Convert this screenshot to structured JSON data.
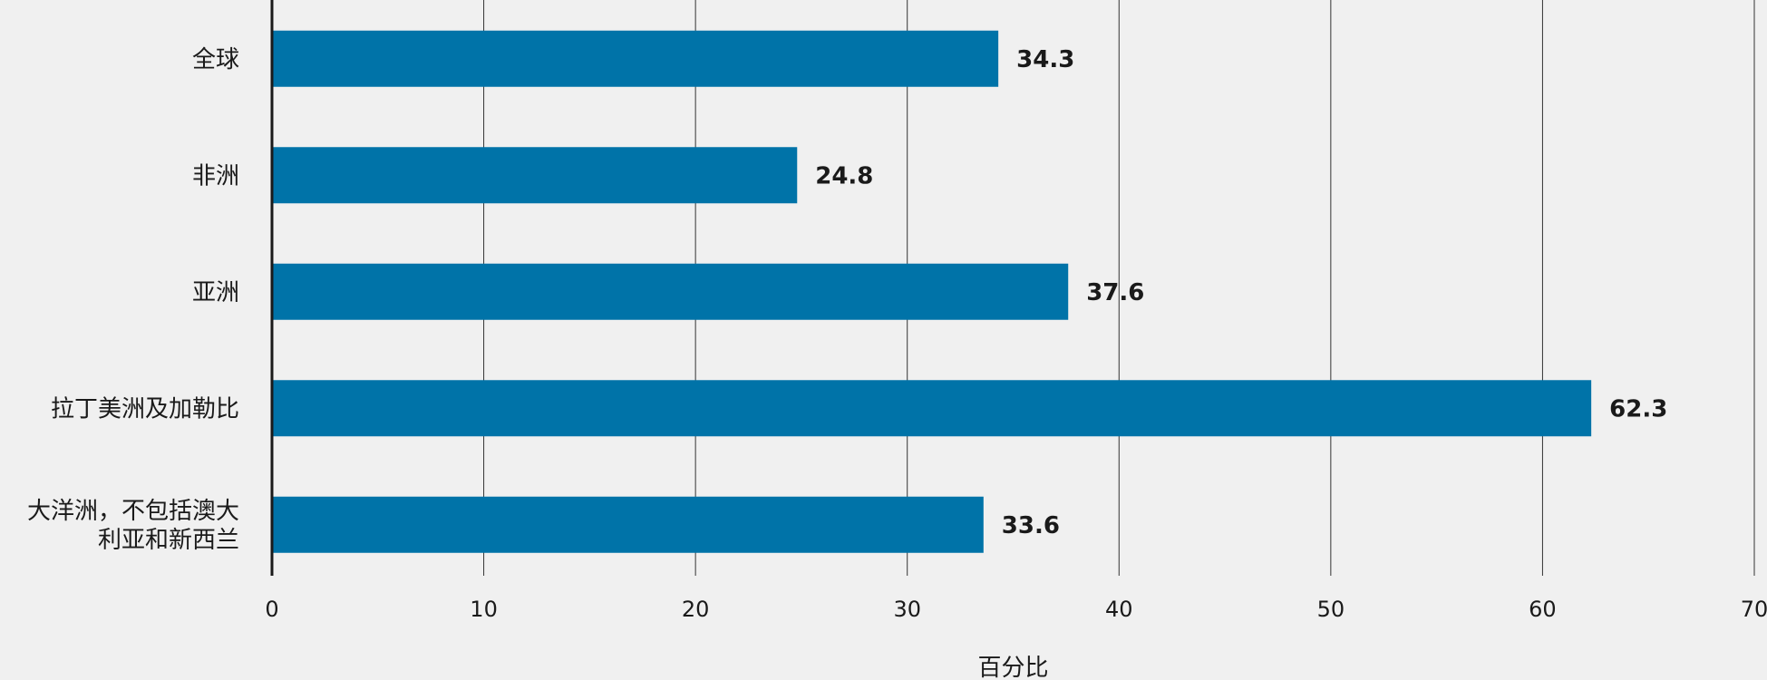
{
  "chart_data": {
    "type": "bar",
    "orientation": "horizontal",
    "categories": [
      [
        "全球"
      ],
      [
        "非洲"
      ],
      [
        "亚洲"
      ],
      [
        "拉丁美洲及加勒比"
      ],
      [
        "大洋洲，不包括澳大",
        "利亚和新西兰"
      ]
    ],
    "values": [
      34.3,
      24.8,
      37.6,
      62.3,
      33.6
    ],
    "value_labels": [
      "34.3",
      "24.8",
      "37.6",
      "62.3",
      "33.6"
    ],
    "xlabel": "百分比",
    "xlim": [
      0,
      70
    ],
    "xticks": [
      0,
      10,
      20,
      30,
      40,
      50,
      60,
      70
    ],
    "xtick_labels": [
      "0",
      "10",
      "20",
      "30",
      "40",
      "50",
      "60",
      "70"
    ],
    "grid": "vertical",
    "colors": {
      "bar": "#0073a8",
      "background": "#f0f0f0",
      "text": "#1a1a1a"
    }
  }
}
